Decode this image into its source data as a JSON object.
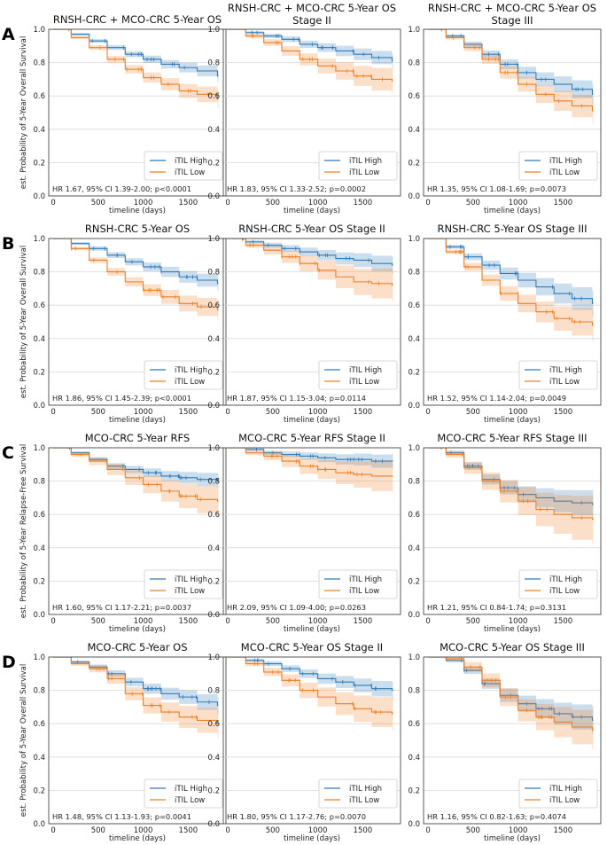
{
  "legend_labels": [
    "iTIL High",
    "iTIL Low"
  ],
  "colors": {
    "high": "#2f7ab8",
    "low": "#ef7f22",
    "grid": "#d9d9d9",
    "axis": "#333333"
  },
  "x_ticks": [
    0,
    500,
    1000,
    1500
  ],
  "y_ticks": [
    "0.0",
    "0.2",
    "0.4",
    "0.6",
    "0.8",
    "1.0"
  ],
  "rows": [
    {
      "letter": "A",
      "ylabel": "est. Probability of 5-Year Overall Survival"
    },
    {
      "letter": "B",
      "ylabel": "est. Probability of 5-Year Overall Survival"
    },
    {
      "letter": "C",
      "ylabel": "est. Probability of 5-Year Relapse-Free Survival"
    },
    {
      "letter": "D",
      "ylabel": "est. Probability of 5-Year Overall Survival"
    }
  ],
  "chart_data": [
    {
      "type": "line",
      "title": "RNSH-CRC + MCO-CRC 5-Year OS",
      "xlabel": "timeline (days)",
      "ylabel": "est. Probability of 5-Year Overall Survival",
      "xlim": [
        -50,
        1920
      ],
      "ylim": [
        0,
        1
      ],
      "stats": "HR 1.67, 95% CI 1.39-2.00; p<0.0001",
      "series": [
        {
          "name": "iTIL High",
          "x": [
            0,
            200,
            400,
            600,
            800,
            1000,
            1200,
            1400,
            1600,
            1826
          ],
          "y": [
            1.0,
            0.97,
            0.93,
            0.89,
            0.85,
            0.82,
            0.79,
            0.77,
            0.75,
            0.72
          ],
          "ci": 0.02
        },
        {
          "name": "iTIL Low",
          "x": [
            0,
            200,
            400,
            600,
            800,
            1000,
            1200,
            1400,
            1600,
            1826
          ],
          "y": [
            1.0,
            0.95,
            0.89,
            0.82,
            0.76,
            0.71,
            0.67,
            0.63,
            0.61,
            0.58
          ],
          "ci": 0.03
        }
      ]
    },
    {
      "type": "line",
      "title": "RNSH-CRC + MCO-CRC 5-Year OS Stage II",
      "xlabel": "timeline (days)",
      "ylabel": "",
      "xlim": [
        -50,
        1920
      ],
      "ylim": [
        0,
        1
      ],
      "stats": "HR 1.83, 95% CI 1.33-2.52; p=0.0002",
      "series": [
        {
          "name": "iTIL High",
          "x": [
            0,
            200,
            400,
            600,
            800,
            1000,
            1200,
            1400,
            1600,
            1826
          ],
          "y": [
            1.0,
            0.98,
            0.96,
            0.94,
            0.91,
            0.89,
            0.87,
            0.85,
            0.83,
            0.81
          ],
          "ci": 0.025
        },
        {
          "name": "iTIL Low",
          "x": [
            0,
            200,
            400,
            600,
            800,
            1000,
            1200,
            1400,
            1600,
            1826
          ],
          "y": [
            1.0,
            0.96,
            0.92,
            0.87,
            0.82,
            0.78,
            0.75,
            0.72,
            0.7,
            0.69
          ],
          "ci": 0.045
        }
      ]
    },
    {
      "type": "line",
      "title": "RNSH-CRC + MCO-CRC 5-Year OS Stage III",
      "xlabel": "timeline (days)",
      "ylabel": "",
      "xlim": [
        -50,
        1920
      ],
      "ylim": [
        0,
        1
      ],
      "stats": "HR 1.35, 95% CI 1.08-1.69; p=0.0073",
      "series": [
        {
          "name": "iTIL High",
          "x": [
            0,
            200,
            400,
            600,
            800,
            1000,
            1200,
            1400,
            1600,
            1826
          ],
          "y": [
            1.0,
            0.96,
            0.91,
            0.85,
            0.79,
            0.74,
            0.7,
            0.67,
            0.64,
            0.61
          ],
          "ci": 0.035
        },
        {
          "name": "iTIL Low",
          "x": [
            0,
            200,
            400,
            600,
            800,
            1000,
            1200,
            1400,
            1600,
            1826
          ],
          "y": [
            1.0,
            0.95,
            0.89,
            0.82,
            0.74,
            0.67,
            0.61,
            0.57,
            0.54,
            0.51
          ],
          "ci": 0.045
        }
      ]
    },
    {
      "type": "line",
      "title": "RNSH-CRC 5-Year OS",
      "xlabel": "timeline (days)",
      "ylabel": "est. Probability of 5-Year Overall Survival",
      "xlim": [
        -50,
        1920
      ],
      "ylim": [
        0,
        1
      ],
      "stats": "HR 1.86, 95% CI 1.45-2.39; p<0.0001",
      "series": [
        {
          "name": "iTIL High",
          "x": [
            0,
            200,
            400,
            600,
            800,
            1000,
            1200,
            1400,
            1600,
            1826
          ],
          "y": [
            1.0,
            0.97,
            0.94,
            0.9,
            0.86,
            0.83,
            0.8,
            0.77,
            0.75,
            0.73
          ],
          "ci": 0.025
        },
        {
          "name": "iTIL Low",
          "x": [
            0,
            200,
            400,
            600,
            800,
            1000,
            1200,
            1400,
            1600,
            1826
          ],
          "y": [
            1.0,
            0.94,
            0.87,
            0.8,
            0.74,
            0.69,
            0.65,
            0.61,
            0.59,
            0.57
          ],
          "ci": 0.035
        }
      ]
    },
    {
      "type": "line",
      "title": "RNSH-CRC 5-Year OS Stage II",
      "xlabel": "timeline (days)",
      "ylabel": "",
      "xlim": [
        -50,
        1920
      ],
      "ylim": [
        0,
        1
      ],
      "stats": "HR 1.87, 95% CI 1.15-3.04; p=0.0114",
      "series": [
        {
          "name": "iTIL High",
          "x": [
            0,
            200,
            400,
            600,
            800,
            1000,
            1200,
            1400,
            1600,
            1826
          ],
          "y": [
            1.0,
            0.98,
            0.96,
            0.94,
            0.92,
            0.9,
            0.88,
            0.87,
            0.85,
            0.84
          ],
          "ci": 0.03
        },
        {
          "name": "iTIL Low",
          "x": [
            0,
            200,
            400,
            600,
            800,
            1000,
            1200,
            1400,
            1600,
            1826
          ],
          "y": [
            1.0,
            0.96,
            0.93,
            0.89,
            0.85,
            0.81,
            0.77,
            0.74,
            0.73,
            0.72
          ],
          "ci": 0.06
        }
      ]
    },
    {
      "type": "line",
      "title": "RNSH-CRC 5-Year OS Stage III",
      "xlabel": "timeline (days)",
      "ylabel": "",
      "xlim": [
        -50,
        1920
      ],
      "ylim": [
        0,
        1
      ],
      "stats": "HR 1.52, 95% CI 1.14-2.04; p=0.0049",
      "series": [
        {
          "name": "iTIL High",
          "x": [
            0,
            200,
            400,
            600,
            800,
            1000,
            1200,
            1400,
            1600,
            1826
          ],
          "y": [
            1.0,
            0.95,
            0.89,
            0.84,
            0.79,
            0.75,
            0.71,
            0.67,
            0.64,
            0.61
          ],
          "ci": 0.045
        },
        {
          "name": "iTIL Low",
          "x": [
            0,
            200,
            400,
            600,
            800,
            1000,
            1200,
            1400,
            1600,
            1826
          ],
          "y": [
            1.0,
            0.92,
            0.83,
            0.75,
            0.67,
            0.61,
            0.56,
            0.52,
            0.5,
            0.48
          ],
          "ci": 0.055
        }
      ]
    },
    {
      "type": "line",
      "title": "MCO-CRC 5-Year RFS",
      "xlabel": "timeline (days)",
      "ylabel": "est. Probability of 5-Year Relapse-Free Survival",
      "xlim": [
        -50,
        1920
      ],
      "ylim": [
        0,
        1
      ],
      "stats": "HR 1.60, 95% CI 1.17-2.21; p=0.0037",
      "series": [
        {
          "name": "iTIL High",
          "x": [
            0,
            200,
            400,
            600,
            800,
            1000,
            1200,
            1400,
            1600,
            1826
          ],
          "y": [
            1.0,
            0.97,
            0.93,
            0.89,
            0.87,
            0.85,
            0.83,
            0.82,
            0.81,
            0.8
          ],
          "ci": 0.025
        },
        {
          "name": "iTIL Low",
          "x": [
            0,
            200,
            400,
            600,
            800,
            1000,
            1200,
            1400,
            1600,
            1826
          ],
          "y": [
            1.0,
            0.96,
            0.92,
            0.87,
            0.82,
            0.78,
            0.74,
            0.71,
            0.69,
            0.68
          ],
          "ci": 0.055
        }
      ]
    },
    {
      "type": "line",
      "title": "MCO-CRC 5-Year RFS Stage II",
      "xlabel": "timeline (days)",
      "ylabel": "",
      "xlim": [
        -50,
        1920
      ],
      "ylim": [
        0,
        1
      ],
      "stats": "HR 2.09, 95% CI 1.09-4.00; p=0.0263",
      "series": [
        {
          "name": "iTIL High",
          "x": [
            0,
            200,
            400,
            600,
            800,
            1000,
            1200,
            1400,
            1600,
            1826
          ],
          "y": [
            1.0,
            0.99,
            0.97,
            0.96,
            0.95,
            0.94,
            0.93,
            0.93,
            0.92,
            0.92
          ],
          "ci": 0.025
        },
        {
          "name": "iTIL Low",
          "x": [
            0,
            200,
            400,
            600,
            800,
            1000,
            1200,
            1400,
            1600,
            1826
          ],
          "y": [
            1.0,
            0.97,
            0.95,
            0.92,
            0.89,
            0.87,
            0.85,
            0.84,
            0.83,
            0.83
          ],
          "ci": 0.06
        }
      ]
    },
    {
      "type": "line",
      "title": "MCO-CRC 5-Year RFS Stage III",
      "xlabel": "timeline (days)",
      "ylabel": "",
      "xlim": [
        -50,
        1920
      ],
      "ylim": [
        0,
        1
      ],
      "stats": "HR 1.21, 95% CI 0.84-1.74; p=0.3131",
      "series": [
        {
          "name": "iTIL High",
          "x": [
            0,
            200,
            400,
            600,
            800,
            1000,
            1200,
            1400,
            1600,
            1826
          ],
          "y": [
            1.0,
            0.97,
            0.89,
            0.81,
            0.76,
            0.72,
            0.7,
            0.68,
            0.67,
            0.66
          ],
          "ci": 0.05
        },
        {
          "name": "iTIL Low",
          "x": [
            0,
            200,
            400,
            600,
            800,
            1000,
            1200,
            1400,
            1600,
            1826
          ],
          "y": [
            1.0,
            0.96,
            0.88,
            0.8,
            0.74,
            0.68,
            0.63,
            0.6,
            0.58,
            0.57
          ],
          "ci": 0.09
        }
      ]
    },
    {
      "type": "line",
      "title": "MCO-CRC 5-Year OS",
      "xlabel": "timeline (days)",
      "ylabel": "est. Probability of 5-Year Overall Survival",
      "xlim": [
        -50,
        1920
      ],
      "ylim": [
        0,
        1
      ],
      "stats": "HR 1.48, 95% CI 1.13-1.93; p=0.0041",
      "series": [
        {
          "name": "iTIL High",
          "x": [
            0,
            200,
            400,
            600,
            800,
            1000,
            1200,
            1400,
            1600,
            1826
          ],
          "y": [
            1.0,
            0.97,
            0.94,
            0.9,
            0.85,
            0.81,
            0.78,
            0.76,
            0.73,
            0.71
          ],
          "ci": 0.03
        },
        {
          "name": "iTIL Low",
          "x": [
            0,
            200,
            400,
            600,
            800,
            1000,
            1200,
            1400,
            1600,
            1826
          ],
          "y": [
            1.0,
            0.96,
            0.93,
            0.87,
            0.78,
            0.71,
            0.67,
            0.64,
            0.62,
            0.6
          ],
          "ci": 0.05
        }
      ]
    },
    {
      "type": "line",
      "title": "MCO-CRC 5-Year OS Stage II",
      "xlabel": "timeline (days)",
      "ylabel": "",
      "xlim": [
        -50,
        1920
      ],
      "ylim": [
        0,
        1
      ],
      "stats": "HR 1.80, 95% CI 1.17-2.76; p=0.0070",
      "series": [
        {
          "name": "iTIL High",
          "x": [
            0,
            200,
            400,
            600,
            800,
            1000,
            1200,
            1400,
            1600,
            1826
          ],
          "y": [
            1.0,
            0.98,
            0.96,
            0.93,
            0.9,
            0.87,
            0.85,
            0.83,
            0.81,
            0.8
          ],
          "ci": 0.03
        },
        {
          "name": "iTIL Low",
          "x": [
            0,
            200,
            400,
            600,
            800,
            1000,
            1200,
            1400,
            1600,
            1826
          ],
          "y": [
            1.0,
            0.96,
            0.91,
            0.86,
            0.8,
            0.76,
            0.72,
            0.69,
            0.67,
            0.66
          ],
          "ci": 0.06
        }
      ]
    },
    {
      "type": "line",
      "title": "MCO-CRC 5-Year OS Stage III",
      "xlabel": "timeline (days)",
      "ylabel": "",
      "xlim": [
        -50,
        1920
      ],
      "ylim": [
        0,
        1
      ],
      "stats": "HR 1.16, 95% CI 0.82-1.63; p=0.4074",
      "series": [
        {
          "name": "iTIL High",
          "x": [
            0,
            200,
            400,
            600,
            800,
            1000,
            1200,
            1400,
            1600,
            1826
          ],
          "y": [
            1.0,
            0.98,
            0.92,
            0.84,
            0.77,
            0.72,
            0.69,
            0.66,
            0.64,
            0.62
          ],
          "ci": 0.05
        },
        {
          "name": "iTIL Low",
          "x": [
            0,
            200,
            400,
            600,
            800,
            1000,
            1200,
            1400,
            1600,
            1826
          ],
          "y": [
            1.0,
            0.99,
            0.94,
            0.86,
            0.76,
            0.68,
            0.64,
            0.61,
            0.58,
            0.56
          ],
          "ci": 0.07
        }
      ]
    }
  ]
}
